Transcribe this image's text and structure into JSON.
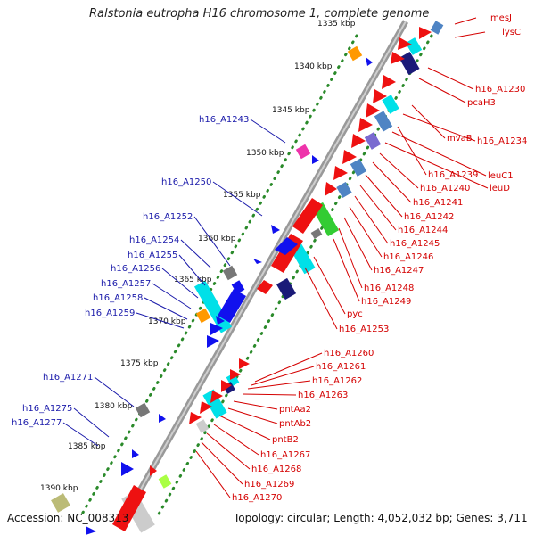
{
  "title": "Ralstonia eutropha H16 chromosome 1, complete genome",
  "accession": "Accession: NC_008313",
  "topology": "Topology: circular; Length: 4,052,032 bp; Genes: 3,711",
  "kbp_ticks": [
    "1335 kbp",
    "1340 kbp",
    "1345 kbp",
    "1350 kbp",
    "1355 kbp",
    "1360 kbp",
    "1365 kbp",
    "1370 kbp",
    "1375 kbp",
    "1380 kbp",
    "1385 kbp",
    "1390 kbp"
  ],
  "right_labels": [
    "mesJ",
    "lysC",
    "h16_A1230",
    "pcaH3",
    "mvaB",
    "h16_A1234",
    "leuC1",
    "h16_A1239",
    "leuD",
    "h16_A1240",
    "h16_A1241",
    "h16_A1242",
    "h16_A1244",
    "h16_A1245",
    "h16_A1246",
    "h16_A1247",
    "h16_A1248",
    "h16_A1249",
    "pyc",
    "h16_A1253",
    "h16_A1260",
    "h16_A1261",
    "h16_A1262",
    "h16_A1263",
    "pntAa2",
    "pntAb2",
    "pntB2",
    "h16_A1267",
    "h16_A1268",
    "h16_A1269",
    "h16_A1270"
  ],
  "left_labels": [
    "h16_A1243",
    "h16_A1250",
    "h16_A1252",
    "h16_A1254",
    "h16_A1255",
    "h16_A1256",
    "h16_A1257",
    "h16_A1258",
    "h16_A1259",
    "h16_A1271",
    "h16_A1275",
    "h16_A1277"
  ],
  "colors": {
    "forward_gene": "#ee1111",
    "reverse_gene": "#1111ee",
    "cyan": "#00e0e8",
    "steel": "#4f84c4",
    "navy": "#1a1a78",
    "gray": "#777777",
    "backbone": "#888888",
    "dots": "#2a8a2a"
  }
}
